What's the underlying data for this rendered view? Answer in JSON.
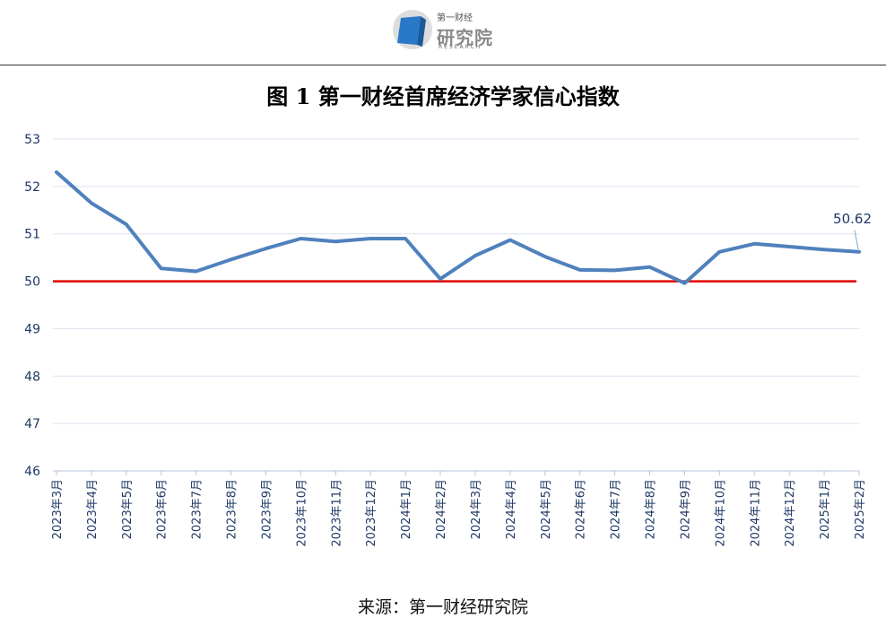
{
  "header": {
    "logo_small": "第一财经",
    "logo_cn": "研究院",
    "logo_en": "RESEARCH"
  },
  "footer": {
    "source": "来源：第一财经研究院"
  },
  "chart_data": {
    "type": "line",
    "title": "图 1  第一财经首席经济学家信心指数",
    "xlabel": "",
    "ylabel": "",
    "ylim": [
      46,
      53
    ],
    "yticks": [
      46,
      47,
      48,
      49,
      50,
      51,
      52,
      53
    ],
    "grid": true,
    "categories": [
      "2023年3月",
      "2023年4月",
      "2023年5月",
      "2023年6月",
      "2023年7月",
      "2023年8月",
      "2023年9月",
      "2023年10月",
      "2023年11月",
      "2023年12月",
      "2024年1月",
      "2024年2月",
      "2024年3月",
      "2024年4月",
      "2024年5月",
      "2024年6月",
      "2024年7月",
      "2024年8月",
      "2024年9月",
      "2024年10月",
      "2024年11月",
      "2024年12月",
      "2025年1月",
      "2025年2月"
    ],
    "series": [
      {
        "values": [
          52.3,
          51.65,
          51.2,
          50.27,
          50.21,
          50.46,
          50.69,
          50.9,
          50.84,
          50.9,
          50.9,
          50.05,
          50.54,
          50.87,
          50.52,
          50.24,
          50.23,
          50.3,
          49.96,
          50.62,
          50.79,
          50.73,
          50.67,
          50.62
        ],
        "color": "#4f81bd"
      }
    ],
    "reference_line": {
      "value": 50,
      "color": "#e00000"
    },
    "annotation": {
      "text": "50.62",
      "category": "2025年2月"
    },
    "colors": {
      "axis_text": "#1f3864",
      "grid": "#d9e2f0",
      "annotation": "#1f3864"
    }
  }
}
